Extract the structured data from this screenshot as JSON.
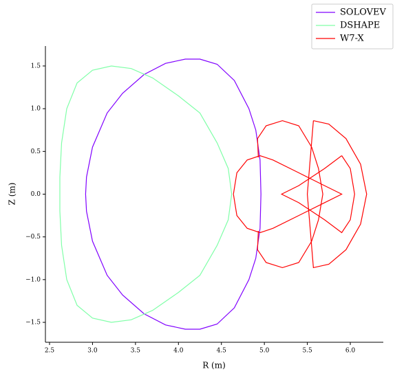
{
  "chart_data": {
    "type": "line",
    "xlabel": "R (m)",
    "ylabel": "Z (m)",
    "xlim": [
      2.452,
      6.384
    ],
    "ylim": [
      -1.733,
      1.733
    ],
    "xticks": [
      2.5,
      {
        "value": 3.0,
        "label": "3.0"
      },
      3.5,
      {
        "value": 4.0,
        "label": "4.0"
      },
      4.5,
      {
        "value": 5.0,
        "label": "5.0"
      },
      5.5,
      {
        "value": 6.0,
        "label": "6.0"
      }
    ],
    "yticks": [
      {
        "value": -1.5,
        "label": "−1.5"
      },
      {
        "value": -1.0,
        "label": "−1.0"
      },
      {
        "value": -0.5,
        "label": "−0.5"
      },
      {
        "value": 0,
        "label": "0.0"
      },
      0.5,
      {
        "value": 1.0,
        "label": "1.0"
      },
      1.5
    ],
    "legend": "upper right",
    "series": [
      {
        "name": "SOLOVEV",
        "color": "#8000ff",
        "x": [
          4.96,
          4.95,
          4.9,
          4.82,
          4.65,
          4.45,
          4.25,
          4.08,
          3.85,
          3.6,
          3.35,
          3.17,
          3.0,
          2.93,
          2.92,
          2.93,
          3.0,
          3.17,
          3.35,
          3.6,
          3.85,
          4.08,
          4.25,
          4.45,
          4.65,
          4.82,
          4.9,
          4.95,
          4.96
        ],
        "values": [
          0,
          0.4,
          0.75,
          1.0,
          1.33,
          1.52,
          1.58,
          1.58,
          1.53,
          1.4,
          1.18,
          0.95,
          0.55,
          0.2,
          0,
          -0.2,
          -0.55,
          -0.95,
          -1.18,
          -1.4,
          -1.53,
          -1.58,
          -1.58,
          -1.52,
          -1.33,
          -1.0,
          -0.75,
          -0.4,
          0
        ]
      },
      {
        "name": "DSHAPE",
        "color": "#80ffa8",
        "x": [
          4.62,
          4.58,
          4.45,
          4.25,
          4.0,
          3.7,
          3.45,
          3.22,
          3.0,
          2.82,
          2.7,
          2.64,
          2.62,
          2.62,
          2.62,
          2.64,
          2.7,
          2.82,
          3.0,
          3.22,
          3.45,
          3.7,
          4.0,
          4.25,
          4.45,
          4.58,
          4.62
        ],
        "values": [
          0,
          0.3,
          0.6,
          0.95,
          1.15,
          1.36,
          1.47,
          1.5,
          1.45,
          1.3,
          1.0,
          0.6,
          0.2,
          0,
          -0.2,
          -0.6,
          -1.0,
          -1.3,
          -1.45,
          -1.5,
          -1.47,
          -1.36,
          -1.15,
          -0.95,
          -0.6,
          -0.3,
          0
        ]
      },
      {
        "name": "W7-X",
        "color": "#ff0000",
        "x": [
          4.64,
          4.68,
          4.8,
          4.95,
          5.1,
          5.4,
          5.7,
          5.9,
          5.7,
          5.4,
          5.1,
          4.95,
          4.8,
          4.68,
          4.64,
          null,
          4.93,
          4.92,
          5.02,
          5.21,
          5.4,
          5.55,
          5.63,
          5.68,
          5.63,
          5.55,
          5.4,
          5.21,
          5.02,
          4.92,
          4.93,
          null,
          5.57,
          5.75,
          5.95,
          6.12,
          6.19,
          6.12,
          5.95,
          5.75,
          5.57,
          5.5,
          5.57,
          null,
          5.9,
          6.0,
          6.05,
          6.0,
          5.9,
          5.7,
          5.4,
          5.2,
          5.4,
          5.7,
          5.9
        ],
        "values": [
          0,
          0.25,
          0.4,
          0.45,
          0.4,
          0.25,
          0.1,
          0,
          -0.1,
          -0.25,
          -0.4,
          -0.45,
          -0.4,
          -0.25,
          0,
          null,
          0.43,
          0.65,
          0.8,
          0.86,
          0.8,
          0.55,
          0.3,
          0,
          -0.3,
          -0.55,
          -0.8,
          -0.86,
          -0.8,
          -0.65,
          -0.43,
          null,
          0.86,
          0.82,
          0.65,
          0.35,
          0,
          -0.35,
          -0.65,
          -0.82,
          -0.86,
          0,
          0.86,
          null,
          0.45,
          0.3,
          0,
          -0.3,
          -0.45,
          -0.3,
          -0.1,
          0,
          0.1,
          0.3,
          0.45
        ]
      }
    ]
  }
}
